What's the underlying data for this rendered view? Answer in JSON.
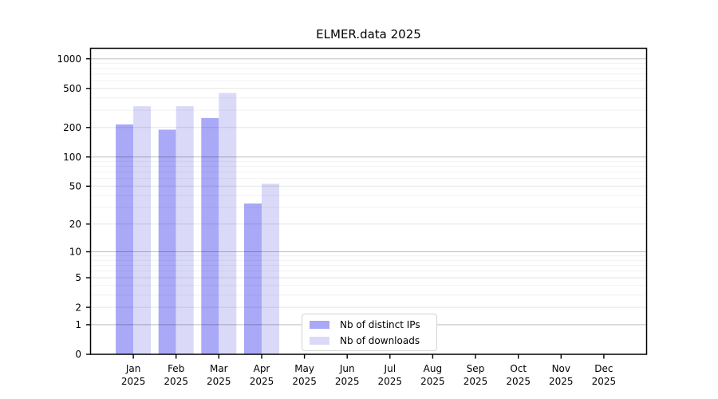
{
  "chart_data": {
    "type": "bar",
    "title": "ELMER.data 2025",
    "year": "2025",
    "months": [
      "Jan",
      "Feb",
      "Mar",
      "Apr",
      "May",
      "Jun",
      "Jul",
      "Aug",
      "Sep",
      "Oct",
      "Nov",
      "Dec"
    ],
    "series": [
      {
        "name": "Nb of distinct IPs",
        "color": "#a9a9f7",
        "values": [
          215,
          190,
          250,
          33,
          0,
          0,
          0,
          0,
          0,
          0,
          0,
          0
        ]
      },
      {
        "name": "Nb of downloads",
        "color": "#dadaf8",
        "values": [
          330,
          330,
          450,
          53,
          0,
          0,
          0,
          0,
          0,
          0,
          0,
          0
        ]
      }
    ],
    "y_ticks": [
      0,
      1,
      2,
      5,
      10,
      20,
      50,
      100,
      200,
      500,
      1000
    ],
    "y_scale": "log10(1+v)",
    "ylim": [
      0,
      1300
    ],
    "grid": {
      "on": true,
      "major": [
        1,
        10,
        100,
        1000
      ],
      "medium": [
        2,
        5,
        20,
        50,
        200,
        500
      ],
      "minor": [
        3,
        4,
        6,
        7,
        8,
        9,
        30,
        40,
        60,
        70,
        80,
        90,
        300,
        400,
        600,
        700,
        800,
        900
      ]
    },
    "legend_position": "lower center",
    "axis_color": "#000000",
    "background_color": "#ffffff"
  }
}
